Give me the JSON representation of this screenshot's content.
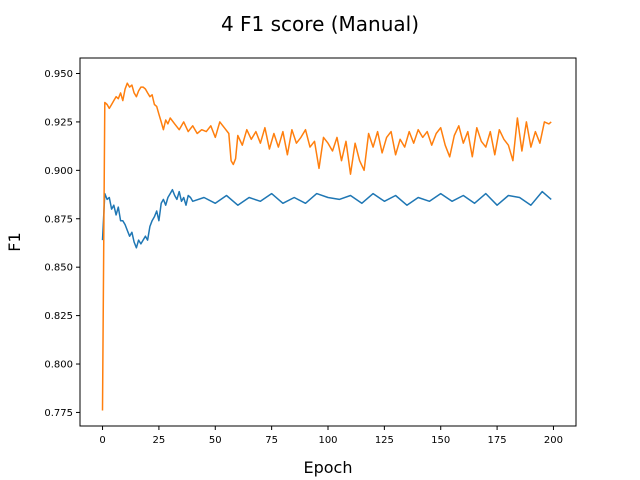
{
  "chart_data": {
    "type": "line",
    "title": "4 F1 score (Manual)",
    "xlabel": "Epoch",
    "ylabel": "F1",
    "xlim": [
      -10,
      210
    ],
    "ylim": [
      0.768,
      0.958
    ],
    "xticks": [
      0,
      25,
      50,
      75,
      100,
      125,
      150,
      175,
      200
    ],
    "yticks": [
      0.775,
      0.8,
      0.825,
      0.85,
      0.875,
      0.9,
      0.925,
      0.95
    ],
    "xtick_labels": [
      "0",
      "25",
      "50",
      "75",
      "100",
      "125",
      "150",
      "175",
      "200"
    ],
    "ytick_labels": [
      "0.775",
      "0.800",
      "0.825",
      "0.850",
      "0.875",
      "0.900",
      "0.925",
      "0.950"
    ],
    "grid": false,
    "legend": false,
    "series": [
      {
        "color": "#1f77b4",
        "x": [
          0,
          1,
          2,
          3,
          4,
          5,
          6,
          7,
          8,
          9,
          10,
          11,
          12,
          13,
          14,
          15,
          16,
          17,
          18,
          19,
          20,
          21,
          22,
          23,
          24,
          25,
          26,
          27,
          28,
          29,
          30,
          31,
          32,
          33,
          34,
          35,
          36,
          37,
          38,
          39,
          40,
          45,
          50,
          55,
          60,
          65,
          70,
          75,
          80,
          85,
          90,
          95,
          100,
          105,
          110,
          115,
          120,
          125,
          130,
          135,
          140,
          145,
          150,
          155,
          160,
          165,
          170,
          175,
          180,
          185,
          190,
          195,
          199
        ],
        "values": [
          0.864,
          0.888,
          0.885,
          0.886,
          0.88,
          0.882,
          0.877,
          0.881,
          0.874,
          0.874,
          0.872,
          0.869,
          0.866,
          0.868,
          0.863,
          0.86,
          0.864,
          0.862,
          0.864,
          0.866,
          0.864,
          0.871,
          0.874,
          0.876,
          0.879,
          0.874,
          0.883,
          0.885,
          0.882,
          0.886,
          0.888,
          0.89,
          0.887,
          0.885,
          0.889,
          0.884,
          0.886,
          0.882,
          0.887,
          0.886,
          0.884,
          0.886,
          0.883,
          0.887,
          0.882,
          0.886,
          0.884,
          0.888,
          0.883,
          0.886,
          0.883,
          0.888,
          0.886,
          0.885,
          0.887,
          0.883,
          0.888,
          0.884,
          0.887,
          0.882,
          0.886,
          0.884,
          0.888,
          0.884,
          0.887,
          0.883,
          0.888,
          0.882,
          0.887,
          0.886,
          0.882,
          0.889,
          0.885
        ]
      },
      {
        "color": "#ff7f0e",
        "x": [
          0,
          1,
          2,
          3,
          4,
          5,
          6,
          7,
          8,
          9,
          10,
          11,
          12,
          13,
          14,
          15,
          16,
          17,
          18,
          19,
          20,
          21,
          22,
          23,
          24,
          25,
          26,
          27,
          28,
          29,
          30,
          32,
          34,
          36,
          38,
          40,
          42,
          44,
          46,
          48,
          50,
          52,
          54,
          56,
          57,
          58,
          59,
          60,
          62,
          64,
          66,
          68,
          70,
          72,
          74,
          76,
          78,
          80,
          82,
          84,
          86,
          88,
          90,
          92,
          94,
          96,
          98,
          100,
          102,
          104,
          106,
          108,
          110,
          112,
          114,
          116,
          118,
          120,
          122,
          124,
          126,
          128,
          130,
          132,
          134,
          136,
          138,
          140,
          142,
          144,
          146,
          148,
          150,
          152,
          154,
          156,
          158,
          160,
          162,
          164,
          166,
          168,
          170,
          172,
          174,
          176,
          178,
          180,
          182,
          184,
          186,
          188,
          190,
          192,
          194,
          196,
          198,
          199
        ],
        "values": [
          0.776,
          0.935,
          0.934,
          0.932,
          0.934,
          0.936,
          0.938,
          0.937,
          0.94,
          0.936,
          0.942,
          0.945,
          0.943,
          0.944,
          0.94,
          0.938,
          0.941,
          0.943,
          0.943,
          0.942,
          0.94,
          0.938,
          0.939,
          0.934,
          0.933,
          0.929,
          0.925,
          0.921,
          0.926,
          0.924,
          0.927,
          0.924,
          0.921,
          0.925,
          0.92,
          0.923,
          0.919,
          0.921,
          0.92,
          0.923,
          0.917,
          0.925,
          0.922,
          0.919,
          0.905,
          0.903,
          0.906,
          0.918,
          0.913,
          0.921,
          0.916,
          0.92,
          0.914,
          0.922,
          0.911,
          0.919,
          0.912,
          0.92,
          0.908,
          0.921,
          0.914,
          0.917,
          0.921,
          0.912,
          0.915,
          0.901,
          0.917,
          0.914,
          0.91,
          0.917,
          0.905,
          0.915,
          0.898,
          0.914,
          0.905,
          0.9,
          0.919,
          0.912,
          0.92,
          0.909,
          0.917,
          0.92,
          0.908,
          0.916,
          0.912,
          0.92,
          0.914,
          0.921,
          0.917,
          0.92,
          0.913,
          0.919,
          0.922,
          0.913,
          0.907,
          0.918,
          0.923,
          0.914,
          0.92,
          0.907,
          0.922,
          0.915,
          0.912,
          0.92,
          0.908,
          0.921,
          0.916,
          0.913,
          0.905,
          0.927,
          0.91,
          0.925,
          0.912,
          0.92,
          0.914,
          0.925,
          0.924,
          0.925
        ]
      }
    ]
  }
}
